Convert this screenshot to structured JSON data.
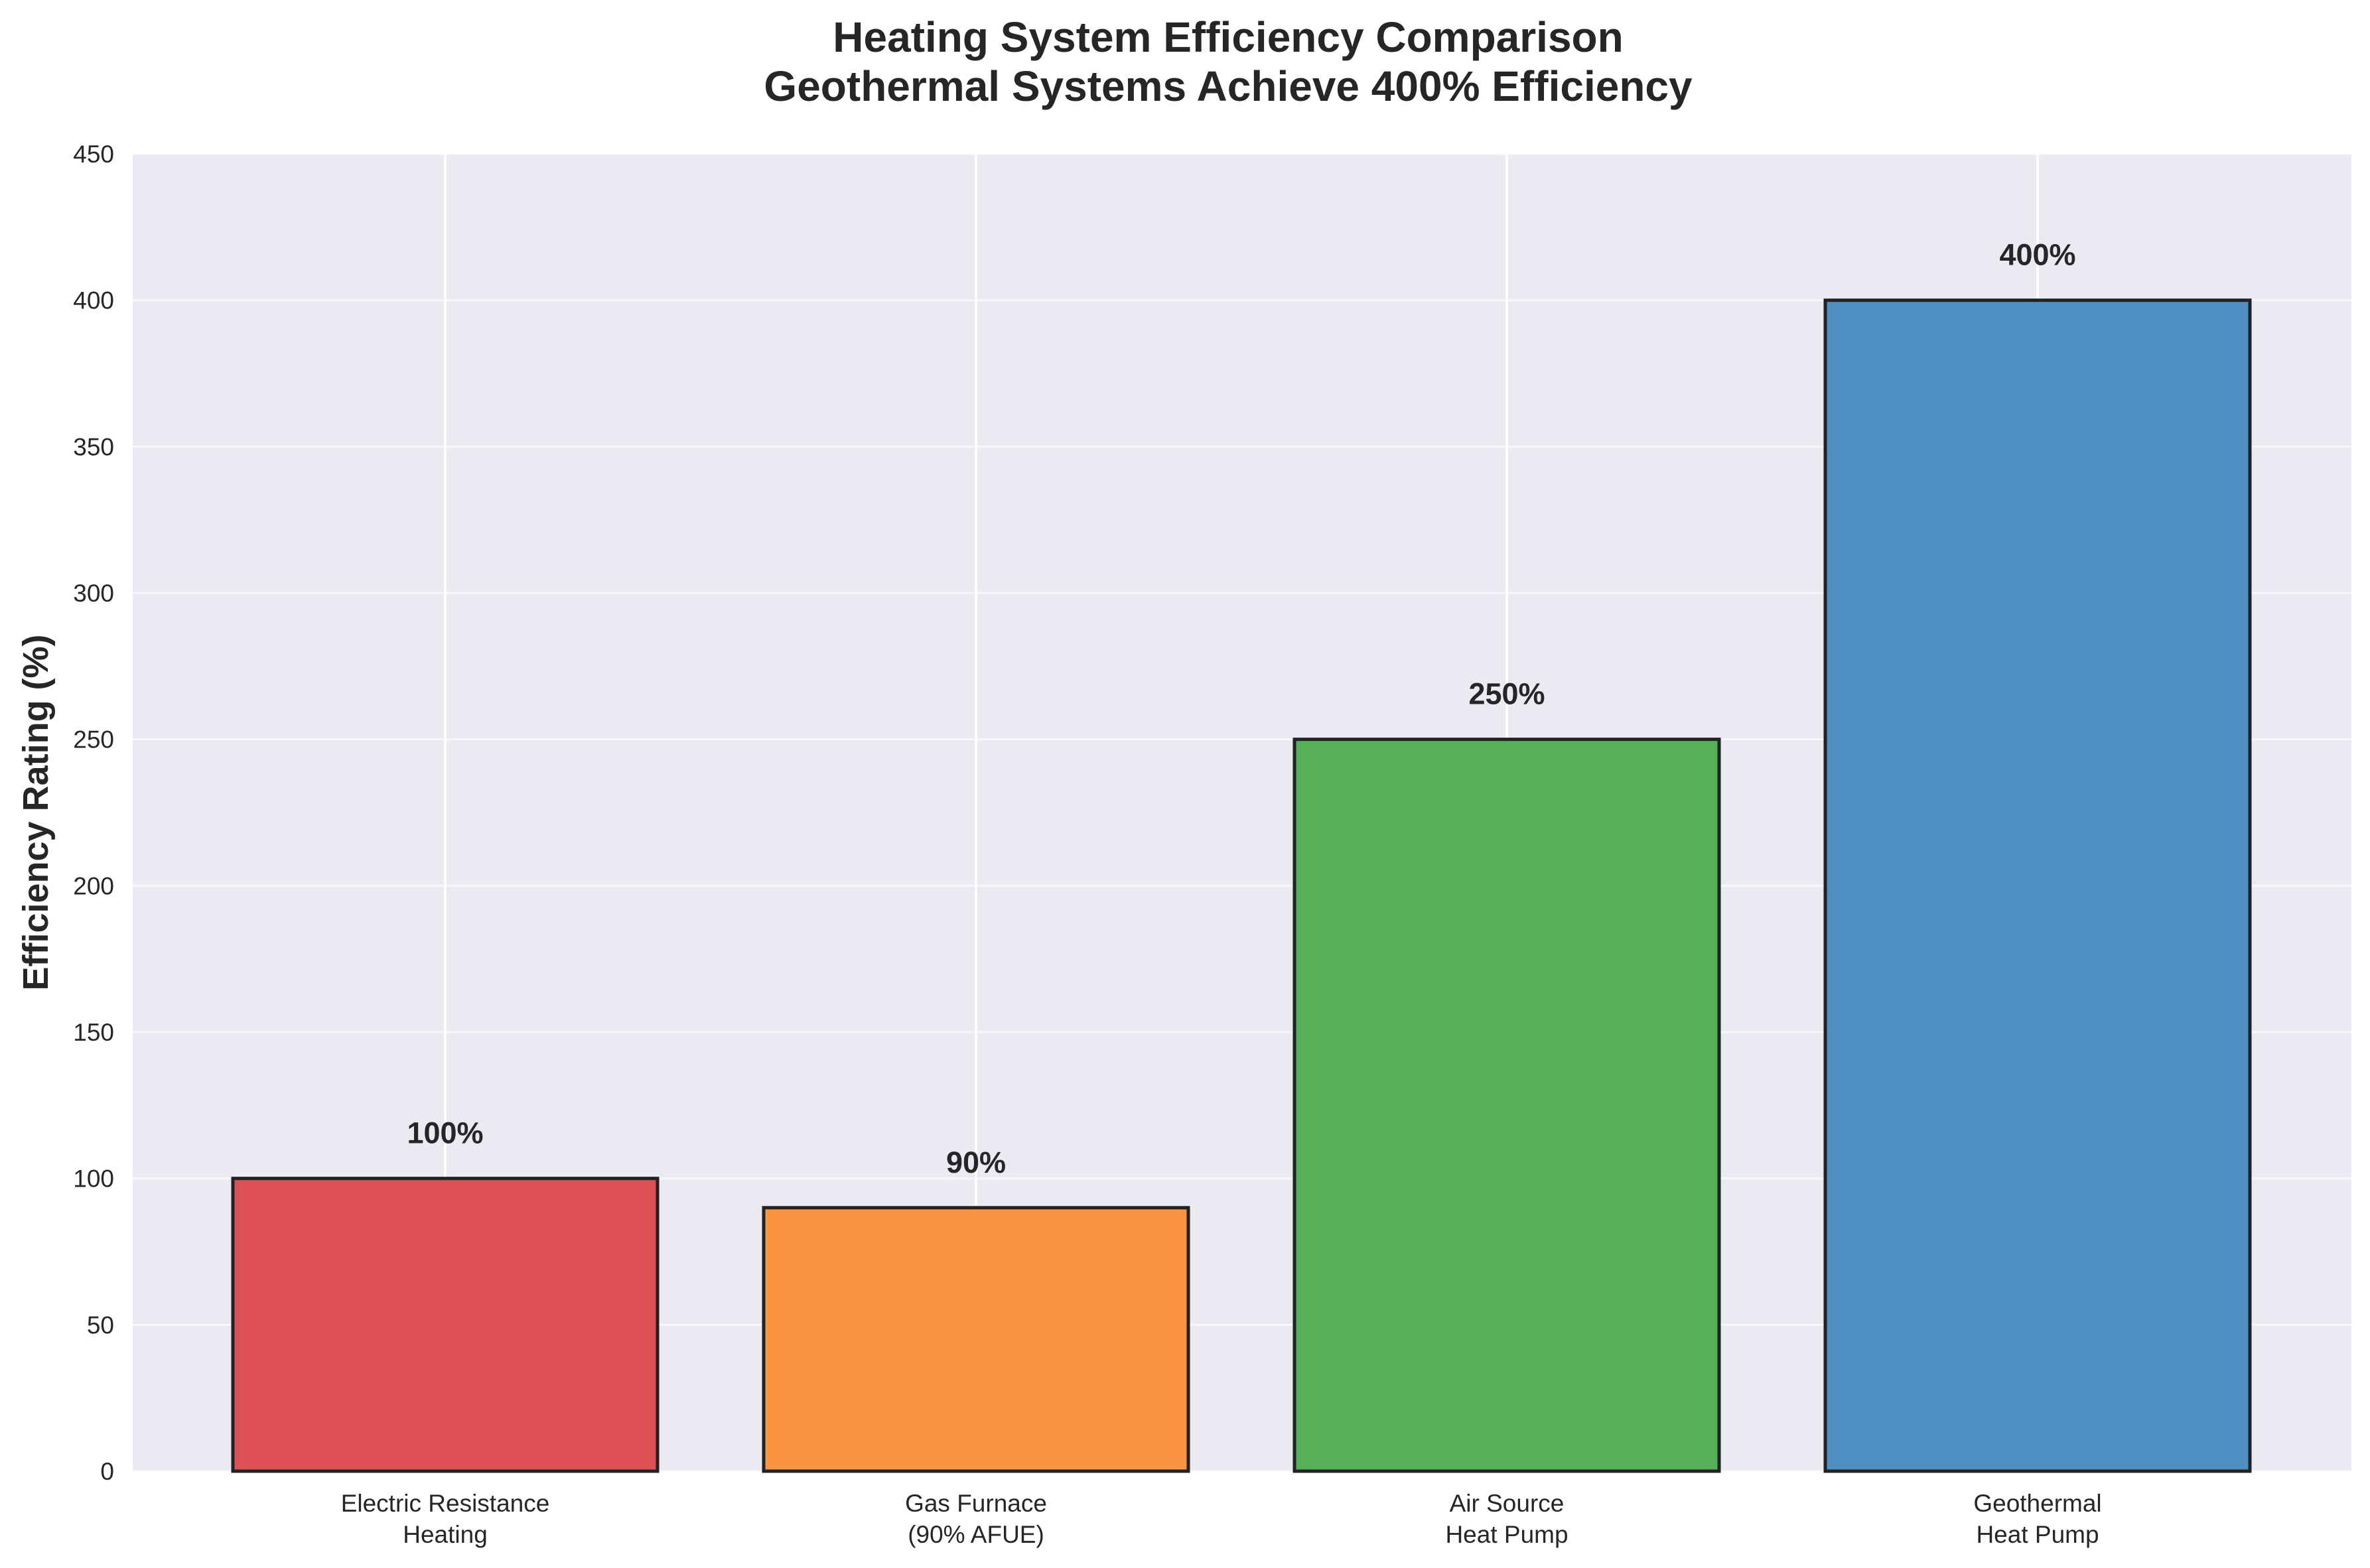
{
  "chart_data": {
    "type": "bar",
    "title": [
      "Heating System Efficiency Comparison",
      "Geothermal Systems Achieve 400% Efficiency"
    ],
    "xlabel": "",
    "ylabel": "Efficiency Rating (%)",
    "ylim": [
      0,
      450
    ],
    "yticks": [
      0,
      50,
      100,
      150,
      200,
      250,
      300,
      350,
      400,
      450
    ],
    "categories": [
      [
        "Electric Resistance",
        "Heating"
      ],
      [
        "Gas Furnace",
        "(90% AFUE)"
      ],
      [
        "Air Source",
        "Heat Pump"
      ],
      [
        "Geothermal",
        "Heat Pump"
      ]
    ],
    "values": [
      100,
      90,
      250,
      400
    ],
    "value_labels": [
      "100%",
      "90%",
      "250%",
      "400%"
    ],
    "colors": [
      "#dc4e53",
      "#fb923d",
      "#52ae54",
      "#4a8ec0"
    ],
    "grid": true
  }
}
